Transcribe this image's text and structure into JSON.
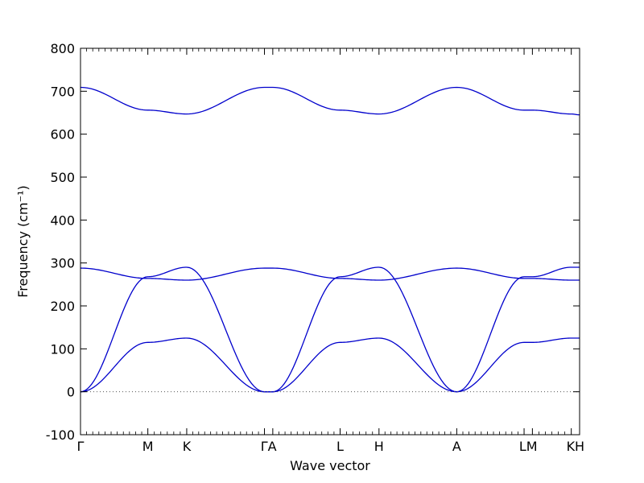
{
  "chart_data": {
    "type": "line",
    "xlabel": "Wave vector",
    "ylabel": "Frequency (cm⁻¹)",
    "ylim": [
      -100,
      800
    ],
    "y_ticks": [
      -100,
      0,
      100,
      200,
      300,
      400,
      500,
      600,
      700,
      800
    ],
    "zero_line": true,
    "grid": false,
    "line_color": "#0000cc",
    "path": [
      {
        "label": "Γ",
        "position": 0
      },
      {
        "label": "M",
        "position": 0.4743
      },
      {
        "label": "K",
        "position": 0.7481
      },
      {
        "label": "Γ",
        "position": 1.2957
      },
      {
        "label": "A",
        "position": 1.3543
      },
      {
        "label": "L",
        "position": 1.8286
      },
      {
        "label": "H",
        "position": 2.1024
      },
      {
        "label": "A",
        "position": 2.65
      },
      {
        "label": "L",
        "position": 3.1243
      },
      {
        "label": "M",
        "position": 3.1829
      },
      {
        "label": "K",
        "position": 3.4567
      },
      {
        "label": "H",
        "position": 3.5153
      }
    ],
    "x_tick_labels": [
      "Γ",
      "M",
      "K",
      "ΓA",
      "L",
      "H",
      "A",
      "LM",
      "KH"
    ],
    "branches": [
      {
        "values": [
          0,
          115,
          125,
          0,
          0,
          115,
          125,
          0,
          115,
          115,
          125,
          125
        ]
      },
      {
        "values": [
          0,
          268,
          290,
          0,
          0,
          268,
          290,
          0,
          268,
          268,
          290,
          290
        ]
      },
      {
        "values": [
          288,
          264,
          260,
          288,
          288,
          264,
          260,
          288,
          264,
          264,
          260,
          260
        ]
      },
      {
        "values": [
          709,
          656,
          647,
          709,
          709,
          656,
          647,
          709,
          656,
          656,
          647,
          645
        ]
      }
    ]
  }
}
